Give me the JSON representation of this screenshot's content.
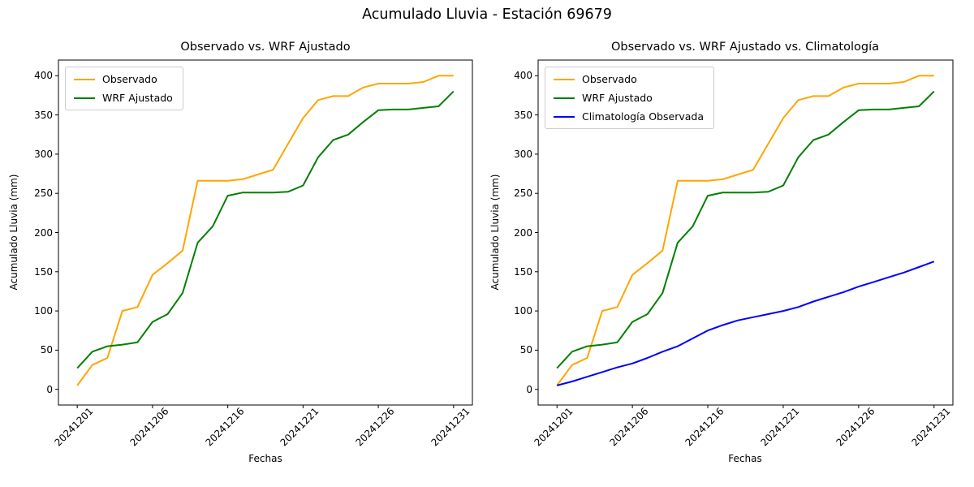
{
  "figure": {
    "title": "Acumulado Lluvia - Estación 69679",
    "background_color": "#ffffff",
    "text_color": "#000000"
  },
  "chart_data": [
    {
      "type": "line",
      "title": "Observado vs. WRF Ajustado",
      "xlabel": "Fechas",
      "ylabel": "Acumulado Lluvia (mm)",
      "grid": false,
      "legend_position": "upper-left",
      "n_points": 26,
      "xlim": [
        -1.25,
        26.25
      ],
      "ylim": [
        -20,
        420
      ],
      "y_ticks": [
        0,
        50,
        100,
        150,
        200,
        250,
        300,
        350,
        400
      ],
      "x_tick_positions": [
        0,
        5,
        10,
        15,
        20,
        25
      ],
      "x_tick_labels": [
        "20241201",
        "20241206",
        "20241216",
        "20241221",
        "20241226",
        "20241231"
      ],
      "x_tick_rotation_deg": 45,
      "series": [
        {
          "name": "Observado",
          "color": "#FFA500",
          "values": [
            5,
            31,
            40,
            100,
            105,
            146,
            161,
            177,
            266,
            266,
            266,
            268,
            274,
            280,
            313,
            346,
            369,
            374,
            374,
            385,
            390,
            390,
            390,
            392,
            400,
            400
          ]
        },
        {
          "name": "WRF Ajustado",
          "color": "#008000",
          "values": [
            27,
            48,
            55,
            57,
            60,
            86,
            96,
            123,
            187,
            208,
            247,
            251,
            251,
            251,
            252,
            260,
            296,
            318,
            325,
            341,
            356,
            357,
            357,
            359,
            361,
            380
          ]
        }
      ]
    },
    {
      "type": "line",
      "title": "Observado vs. WRF Ajustado vs. Climatología",
      "xlabel": "Fechas",
      "ylabel": "Acumulado Lluvia (mm)",
      "grid": false,
      "legend_position": "upper-left",
      "n_points": 26,
      "xlim": [
        -1.25,
        26.25
      ],
      "ylim": [
        -20,
        420
      ],
      "y_ticks": [
        0,
        50,
        100,
        150,
        200,
        250,
        300,
        350,
        400
      ],
      "x_tick_positions": [
        0,
        5,
        10,
        15,
        20,
        25
      ],
      "x_tick_labels": [
        "20241201",
        "20241206",
        "20241216",
        "20241221",
        "20241226",
        "20241231"
      ],
      "x_tick_rotation_deg": 45,
      "series": [
        {
          "name": "Observado",
          "color": "#FFA500",
          "values": [
            5,
            31,
            40,
            100,
            105,
            146,
            161,
            177,
            266,
            266,
            266,
            268,
            274,
            280,
            313,
            346,
            369,
            374,
            374,
            385,
            390,
            390,
            390,
            392,
            400,
            400
          ]
        },
        {
          "name": "WRF Ajustado",
          "color": "#008000",
          "values": [
            27,
            48,
            55,
            57,
            60,
            86,
            96,
            123,
            187,
            208,
            247,
            251,
            251,
            251,
            252,
            260,
            296,
            318,
            325,
            341,
            356,
            357,
            357,
            359,
            361,
            380
          ]
        },
        {
          "name": "Climatología Observada",
          "color": "#0000FF",
          "values": [
            5,
            10,
            16,
            22,
            28,
            33,
            40,
            48,
            55,
            65,
            75,
            82,
            88,
            92,
            96,
            100,
            105,
            112,
            118,
            124,
            131,
            137,
            143,
            149,
            156,
            163
          ]
        }
      ]
    }
  ]
}
